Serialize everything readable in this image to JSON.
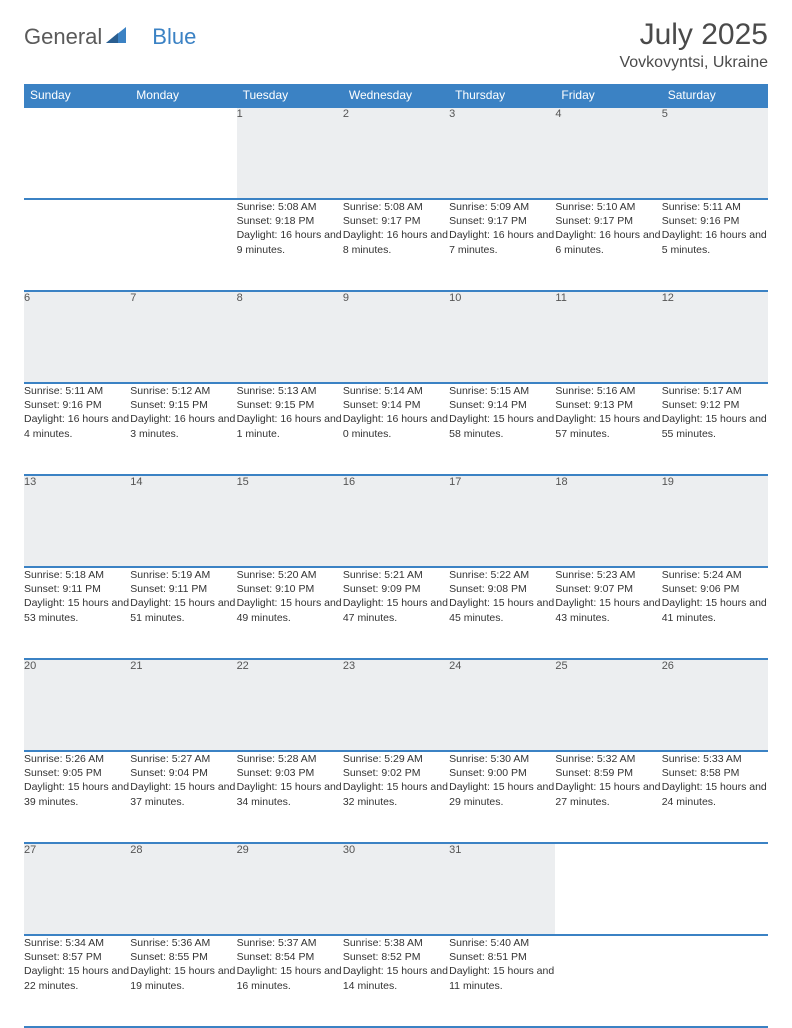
{
  "logo": {
    "wordGeneral": "General",
    "wordBlue": "Blue"
  },
  "title": "July 2025",
  "location": "Vovkovyntsi, Ukraine",
  "colors": {
    "headerBg": "#3b82c4",
    "headerText": "#ffffff",
    "dayStripBg": "#eceef0",
    "border": "#3b82c4",
    "bodyText": "#333333",
    "titleText": "#4a4a4a"
  },
  "dayHeaders": [
    "Sunday",
    "Monday",
    "Tuesday",
    "Wednesday",
    "Thursday",
    "Friday",
    "Saturday"
  ],
  "weeks": [
    [
      null,
      null,
      {
        "n": "1",
        "sr": "5:08 AM",
        "ss": "9:18 PM",
        "dl": "16 hours and 9 minutes."
      },
      {
        "n": "2",
        "sr": "5:08 AM",
        "ss": "9:17 PM",
        "dl": "16 hours and 8 minutes."
      },
      {
        "n": "3",
        "sr": "5:09 AM",
        "ss": "9:17 PM",
        "dl": "16 hours and 7 minutes."
      },
      {
        "n": "4",
        "sr": "5:10 AM",
        "ss": "9:17 PM",
        "dl": "16 hours and 6 minutes."
      },
      {
        "n": "5",
        "sr": "5:11 AM",
        "ss": "9:16 PM",
        "dl": "16 hours and 5 minutes."
      }
    ],
    [
      {
        "n": "6",
        "sr": "5:11 AM",
        "ss": "9:16 PM",
        "dl": "16 hours and 4 minutes."
      },
      {
        "n": "7",
        "sr": "5:12 AM",
        "ss": "9:15 PM",
        "dl": "16 hours and 3 minutes."
      },
      {
        "n": "8",
        "sr": "5:13 AM",
        "ss": "9:15 PM",
        "dl": "16 hours and 1 minute."
      },
      {
        "n": "9",
        "sr": "5:14 AM",
        "ss": "9:14 PM",
        "dl": "16 hours and 0 minutes."
      },
      {
        "n": "10",
        "sr": "5:15 AM",
        "ss": "9:14 PM",
        "dl": "15 hours and 58 minutes."
      },
      {
        "n": "11",
        "sr": "5:16 AM",
        "ss": "9:13 PM",
        "dl": "15 hours and 57 minutes."
      },
      {
        "n": "12",
        "sr": "5:17 AM",
        "ss": "9:12 PM",
        "dl": "15 hours and 55 minutes."
      }
    ],
    [
      {
        "n": "13",
        "sr": "5:18 AM",
        "ss": "9:11 PM",
        "dl": "15 hours and 53 minutes."
      },
      {
        "n": "14",
        "sr": "5:19 AM",
        "ss": "9:11 PM",
        "dl": "15 hours and 51 minutes."
      },
      {
        "n": "15",
        "sr": "5:20 AM",
        "ss": "9:10 PM",
        "dl": "15 hours and 49 minutes."
      },
      {
        "n": "16",
        "sr": "5:21 AM",
        "ss": "9:09 PM",
        "dl": "15 hours and 47 minutes."
      },
      {
        "n": "17",
        "sr": "5:22 AM",
        "ss": "9:08 PM",
        "dl": "15 hours and 45 minutes."
      },
      {
        "n": "18",
        "sr": "5:23 AM",
        "ss": "9:07 PM",
        "dl": "15 hours and 43 minutes."
      },
      {
        "n": "19",
        "sr": "5:24 AM",
        "ss": "9:06 PM",
        "dl": "15 hours and 41 minutes."
      }
    ],
    [
      {
        "n": "20",
        "sr": "5:26 AM",
        "ss": "9:05 PM",
        "dl": "15 hours and 39 minutes."
      },
      {
        "n": "21",
        "sr": "5:27 AM",
        "ss": "9:04 PM",
        "dl": "15 hours and 37 minutes."
      },
      {
        "n": "22",
        "sr": "5:28 AM",
        "ss": "9:03 PM",
        "dl": "15 hours and 34 minutes."
      },
      {
        "n": "23",
        "sr": "5:29 AM",
        "ss": "9:02 PM",
        "dl": "15 hours and 32 minutes."
      },
      {
        "n": "24",
        "sr": "5:30 AM",
        "ss": "9:00 PM",
        "dl": "15 hours and 29 minutes."
      },
      {
        "n": "25",
        "sr": "5:32 AM",
        "ss": "8:59 PM",
        "dl": "15 hours and 27 minutes."
      },
      {
        "n": "26",
        "sr": "5:33 AM",
        "ss": "8:58 PM",
        "dl": "15 hours and 24 minutes."
      }
    ],
    [
      {
        "n": "27",
        "sr": "5:34 AM",
        "ss": "8:57 PM",
        "dl": "15 hours and 22 minutes."
      },
      {
        "n": "28",
        "sr": "5:36 AM",
        "ss": "8:55 PM",
        "dl": "15 hours and 19 minutes."
      },
      {
        "n": "29",
        "sr": "5:37 AM",
        "ss": "8:54 PM",
        "dl": "15 hours and 16 minutes."
      },
      {
        "n": "30",
        "sr": "5:38 AM",
        "ss": "8:52 PM",
        "dl": "15 hours and 14 minutes."
      },
      {
        "n": "31",
        "sr": "5:40 AM",
        "ss": "8:51 PM",
        "dl": "15 hours and 11 minutes."
      },
      null,
      null
    ]
  ],
  "labels": {
    "sunrise": "Sunrise:",
    "sunset": "Sunset:",
    "daylight": "Daylight:"
  }
}
